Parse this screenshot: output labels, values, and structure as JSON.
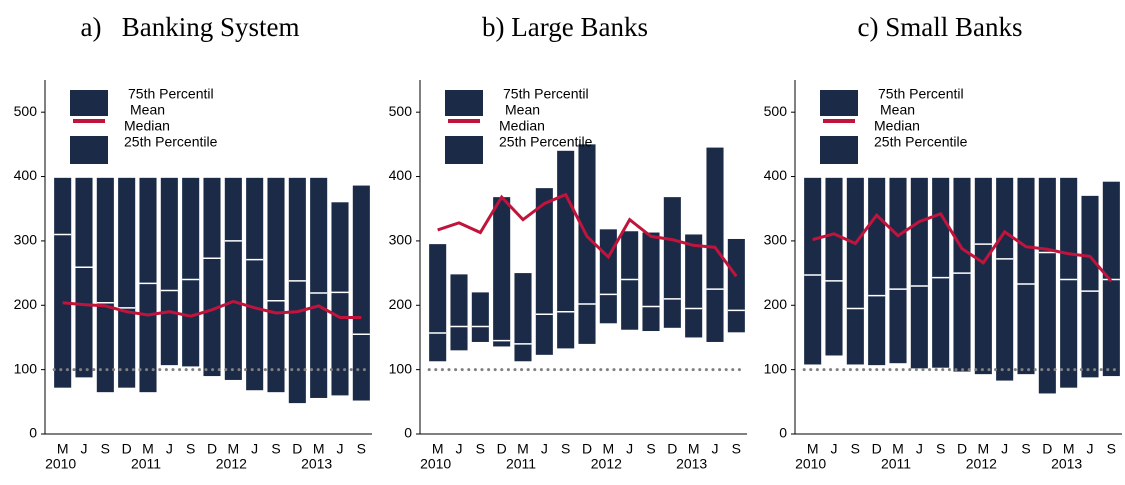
{
  "chart_data": [
    {
      "type": "box",
      "title": "a)   Banking System",
      "categories": [
        "M",
        "J",
        "S",
        "D",
        "M",
        "J",
        "S",
        "D",
        "M",
        "J",
        "S",
        "D",
        "M",
        "J",
        "S"
      ],
      "year_labels": [
        "2010",
        null,
        null,
        null,
        "2011",
        null,
        null,
        null,
        "2012",
        null,
        null,
        null,
        "2013",
        null,
        null
      ],
      "series": [
        {
          "name": "75th Percentil",
          "color": "#1b2a47",
          "values": [
            398,
            398,
            398,
            398,
            398,
            398,
            398,
            398,
            398,
            398,
            398,
            398,
            398,
            360,
            386
          ]
        },
        {
          "name": "Mean",
          "color": "#c0143c",
          "values": [
            204,
            201,
            199,
            190,
            185,
            190,
            183,
            193,
            206,
            196,
            188,
            190,
            199,
            181,
            181
          ]
        },
        {
          "name": "Median",
          "color": "#ffffff",
          "values": [
            310,
            259,
            204,
            196,
            234,
            223,
            240,
            273,
            300,
            271,
            207,
            238,
            219,
            220,
            155
          ]
        },
        {
          "name": "25th Percentile",
          "color": "#1b2a47",
          "values": [
            72,
            88,
            65,
            72,
            65,
            107,
            105,
            90,
            84,
            68,
            65,
            48,
            56,
            60,
            52
          ]
        }
      ],
      "reference": {
        "value": 100,
        "color": "#808080"
      },
      "ylim": [
        0,
        550
      ],
      "yticks": [
        0,
        100,
        200,
        300,
        400,
        500
      ]
    },
    {
      "type": "box",
      "title": "b) Large Banks",
      "categories": [
        "M",
        "J",
        "S",
        "D",
        "M",
        "J",
        "S",
        "D",
        "M",
        "J",
        "S",
        "D",
        "M",
        "J",
        "S"
      ],
      "year_labels": [
        "2010",
        null,
        null,
        null,
        "2011",
        null,
        null,
        null,
        "2012",
        null,
        null,
        null,
        "2013",
        null,
        null
      ],
      "series": [
        {
          "name": "75th Percentil",
          "color": "#1b2a47",
          "values": [
            295,
            248,
            220,
            368,
            250,
            382,
            440,
            450,
            318,
            315,
            313,
            368,
            310,
            445,
            303
          ]
        },
        {
          "name": "Mean",
          "color": "#c0143c",
          "values": [
            317,
            328,
            313,
            368,
            333,
            358,
            372,
            307,
            275,
            333,
            307,
            302,
            293,
            290,
            245
          ]
        },
        {
          "name": "Median",
          "color": "#ffffff",
          "values": [
            157,
            167,
            167,
            145,
            140,
            186,
            190,
            202,
            217,
            240,
            198,
            210,
            195,
            225,
            192
          ]
        },
        {
          "name": "25th Percentile",
          "color": "#1b2a47",
          "values": [
            113,
            130,
            143,
            136,
            113,
            123,
            133,
            140,
            172,
            162,
            160,
            165,
            150,
            143,
            158
          ]
        }
      ],
      "reference": {
        "value": 100,
        "color": "#808080"
      },
      "ylim": [
        0,
        550
      ],
      "yticks": [
        0,
        100,
        200,
        300,
        400,
        500
      ]
    },
    {
      "type": "box",
      "title": "c) Small Banks",
      "categories": [
        "M",
        "J",
        "S",
        "D",
        "M",
        "J",
        "S",
        "D",
        "M",
        "J",
        "S",
        "D",
        "M",
        "J",
        "S"
      ],
      "year_labels": [
        "2010",
        null,
        null,
        null,
        "2011",
        null,
        null,
        null,
        "2012",
        null,
        null,
        null,
        "2013",
        null,
        null
      ],
      "series": [
        {
          "name": "75th Percentil",
          "color": "#1b2a47",
          "values": [
            398,
            398,
            398,
            398,
            398,
            398,
            398,
            398,
            398,
            398,
            398,
            398,
            398,
            370,
            392
          ]
        },
        {
          "name": "Mean",
          "color": "#c0143c",
          "values": [
            302,
            311,
            296,
            340,
            308,
            330,
            342,
            288,
            266,
            314,
            291,
            287,
            280,
            276,
            237
          ]
        },
        {
          "name": "Median",
          "color": "#ffffff",
          "values": [
            247,
            238,
            195,
            215,
            225,
            230,
            243,
            250,
            295,
            272,
            233,
            282,
            240,
            222,
            240
          ]
        },
        {
          "name": "25th Percentile",
          "color": "#1b2a47",
          "values": [
            108,
            122,
            108,
            107,
            110,
            102,
            103,
            97,
            93,
            83,
            93,
            63,
            72,
            88,
            90
          ]
        }
      ],
      "reference": {
        "value": 100,
        "color": "#808080"
      },
      "ylim": [
        0,
        550
      ],
      "yticks": [
        0,
        100,
        200,
        300,
        400,
        500
      ]
    }
  ]
}
